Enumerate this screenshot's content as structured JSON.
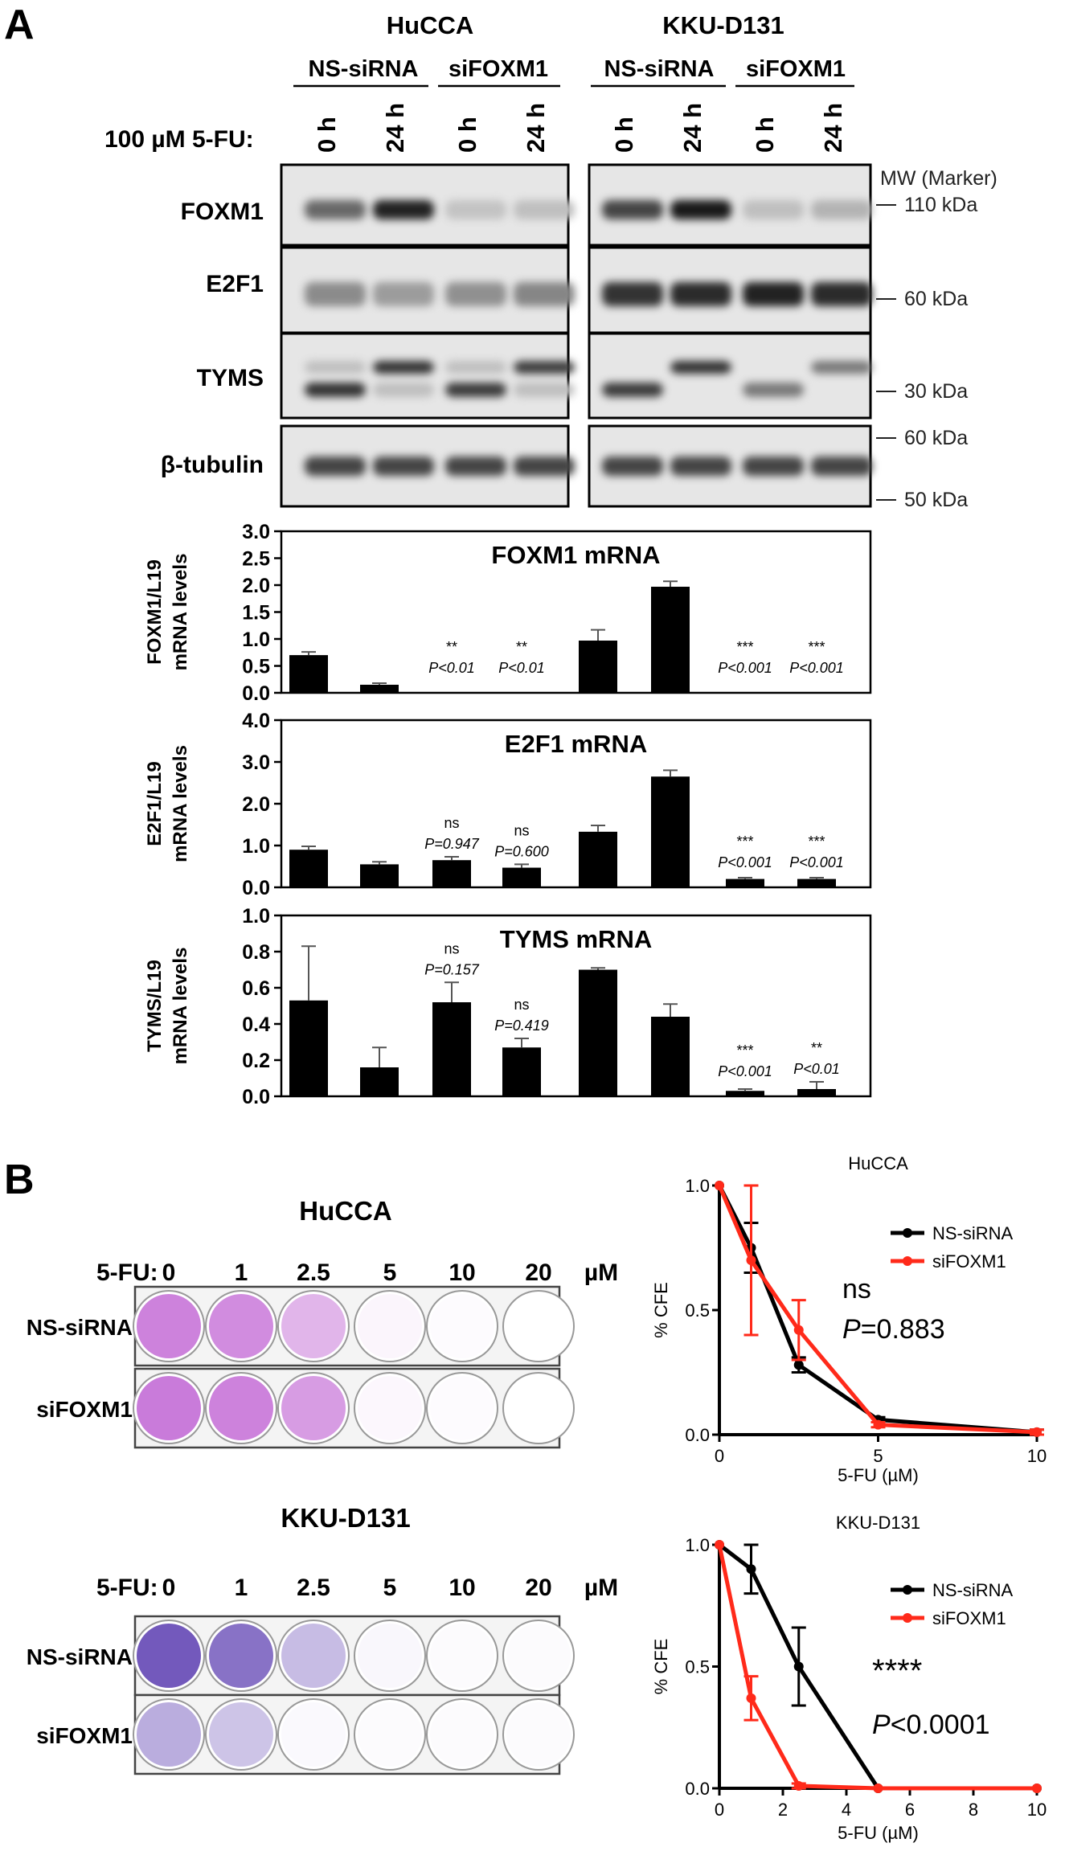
{
  "panel_a": {
    "letter": "A",
    "cell_lines": [
      "HuCCA",
      "KKU-D131"
    ],
    "groups": [
      "NS-siRNA",
      "siFOXM1"
    ],
    "treatment_label": "100 µM 5-FU:",
    "timepoints": [
      "0 h",
      "24 h"
    ],
    "blot_rows": [
      "FOXM1",
      "E2F1",
      "TYMS",
      "β-tubulin"
    ],
    "marker_header": "MW (Marker)",
    "markers": [
      "110 kDa",
      "60 kDa",
      "30 kDa",
      "60 kDa",
      "50 kDa"
    ],
    "band_intensity": {
      "FOXM1": [
        0.55,
        0.95,
        0.03,
        0.05,
        0.75,
        1.0,
        0.05,
        0.12
      ],
      "E2F1": [
        0.35,
        0.25,
        0.32,
        0.38,
        0.85,
        0.9,
        0.95,
        0.9
      ],
      "TYMS_low": [
        0.85,
        0.05,
        0.8,
        0.05,
        0.8,
        0.0,
        0.45,
        0.0
      ],
      "TYMS_high": [
        0.05,
        0.85,
        0.05,
        0.8,
        0.0,
        0.85,
        0.0,
        0.45
      ],
      "beta_tubulin": [
        0.75,
        0.75,
        0.75,
        0.75,
        0.75,
        0.75,
        0.75,
        0.75
      ]
    }
  },
  "chart_data": [
    {
      "type": "bar",
      "title": "FOXM1 mRNA",
      "ylabel": "FOXM1/L19 mRNA levels",
      "ylim": [
        0,
        3.0
      ],
      "yticks": [
        "0.0",
        "0.5",
        "1.0",
        "1.5",
        "2.0",
        "2.5",
        "3.0"
      ],
      "values": [
        0.7,
        0.15,
        0,
        0,
        0.97,
        1.97,
        0,
        0
      ],
      "errors": [
        0.06,
        0.03,
        0,
        0,
        0.2,
        0.1,
        0,
        0
      ],
      "annotations": [
        null,
        null,
        [
          "**",
          "P<0.01"
        ],
        [
          "**",
          "P<0.01"
        ],
        null,
        null,
        [
          "***",
          "P<0.001"
        ],
        [
          "***",
          "P<0.001"
        ]
      ]
    },
    {
      "type": "bar",
      "title": "E2F1 mRNA",
      "ylabel": "E2F1/L19 mRNA levels",
      "ylim": [
        0,
        4.0
      ],
      "yticks": [
        "0.0",
        "1.0",
        "2.0",
        "3.0",
        "4.0"
      ],
      "values": [
        0.9,
        0.55,
        0.65,
        0.47,
        1.33,
        2.65,
        0.2,
        0.2
      ],
      "errors": [
        0.08,
        0.06,
        0.08,
        0.08,
        0.15,
        0.15,
        0.03,
        0.03
      ],
      "annotations": [
        null,
        null,
        [
          "ns",
          "P=0.947"
        ],
        [
          "ns",
          "P=0.600"
        ],
        null,
        null,
        [
          "***",
          "P<0.001"
        ],
        [
          "***",
          "P<0.001"
        ]
      ]
    },
    {
      "type": "bar",
      "title": "TYMS mRNA",
      "ylabel": "TYMS/L19 mRNA levels",
      "ylim": [
        0,
        1.0
      ],
      "yticks": [
        "0.0",
        "0.2",
        "0.4",
        "0.6",
        "0.8",
        "1.0"
      ],
      "values": [
        0.53,
        0.16,
        0.52,
        0.27,
        0.7,
        0.44,
        0.03,
        0.04
      ],
      "errors": [
        0.3,
        0.11,
        0.11,
        0.05,
        0.01,
        0.07,
        0.01,
        0.04
      ],
      "annotations": [
        null,
        null,
        [
          "ns",
          "P=0.157"
        ],
        [
          "ns",
          "P=0.419"
        ],
        null,
        null,
        [
          "***",
          "P<0.001"
        ],
        [
          "**",
          "P<0.01"
        ]
      ]
    },
    {
      "type": "line",
      "title": "HuCCA",
      "xlabel": "5-FU (µM)",
      "ylabel": "% CFE",
      "xlim": [
        0,
        10
      ],
      "ylim": [
        0,
        1.0
      ],
      "xticks": [
        "0",
        "5",
        "10"
      ],
      "yticks": [
        "0.0",
        "0.5",
        "1.0"
      ],
      "legend": "top-right",
      "series": [
        {
          "name": "NS-siRNA",
          "color": "#000000",
          "x": [
            0,
            1,
            2.5,
            5,
            10
          ],
          "y": [
            1.0,
            0.75,
            0.28,
            0.06,
            0.01
          ],
          "err": [
            0,
            0.1,
            0.03,
            0.01,
            0.01
          ]
        },
        {
          "name": "siFOXM1",
          "color": "#ff2a1a",
          "x": [
            0,
            1,
            2.5,
            5,
            10
          ],
          "y": [
            1.0,
            0.7,
            0.42,
            0.04,
            0.01
          ],
          "err": [
            0,
            0.3,
            0.12,
            0.01,
            0.01
          ]
        }
      ],
      "annotation": [
        "ns",
        "P=0.883"
      ]
    },
    {
      "type": "line",
      "title": "KKU-D131",
      "xlabel": "5-FU (µM)",
      "ylabel": "% CFE",
      "xlim": [
        0,
        10
      ],
      "ylim": [
        0,
        1.0
      ],
      "xticks": [
        "0",
        "2",
        "4",
        "6",
        "8",
        "10"
      ],
      "yticks": [
        "0.0",
        "0.5",
        "1.0"
      ],
      "legend": "top-right",
      "series": [
        {
          "name": "NS-siRNA",
          "color": "#000000",
          "x": [
            0,
            1,
            2.5,
            5,
            10
          ],
          "y": [
            1.0,
            0.9,
            0.5,
            0.0,
            0.0
          ],
          "err": [
            0,
            0.1,
            0.16,
            0,
            0
          ]
        },
        {
          "name": "siFOXM1",
          "color": "#ff2a1a",
          "x": [
            0,
            1,
            2.5,
            5,
            10
          ],
          "y": [
            1.0,
            0.37,
            0.01,
            0.0,
            0.0
          ],
          "err": [
            0,
            0.09,
            0.01,
            0,
            0
          ]
        }
      ],
      "annotation": [
        "****",
        "P<0.0001"
      ]
    }
  ],
  "panel_b": {
    "letter": "B",
    "treatment_label": "5-FU:",
    "doses": [
      "0",
      "1",
      "2.5",
      "5",
      "10",
      "20"
    ],
    "unit": "µM",
    "rows": [
      "NS-siRNA",
      "siFOXM1"
    ],
    "plates": [
      {
        "cell_line": "HuCCA",
        "color": "#b03cc8",
        "density": [
          [
            0.75,
            0.7,
            0.45,
            0.06,
            0.02,
            0.01
          ],
          [
            0.8,
            0.75,
            0.6,
            0.05,
            0.02,
            0.01
          ]
        ]
      },
      {
        "cell_line": "KKU-D131",
        "color": "#5a3cb0",
        "density": [
          [
            1.0,
            0.85,
            0.4,
            0.05,
            0.02,
            0.02
          ],
          [
            0.5,
            0.35,
            0.03,
            0.02,
            0.02,
            0.02
          ]
        ]
      }
    ]
  }
}
